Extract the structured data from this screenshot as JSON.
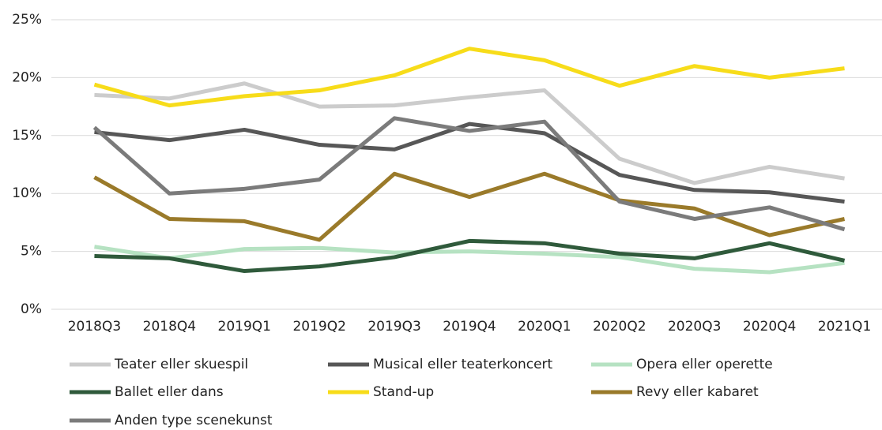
{
  "chart_data": {
    "type": "line",
    "categories": [
      "2018Q3",
      "2018Q4",
      "2019Q1",
      "2019Q2",
      "2019Q3",
      "2019Q4",
      "2020Q1",
      "2020Q2",
      "2020Q3",
      "2020Q4",
      "2021Q1"
    ],
    "series": [
      {
        "name": "Teater eller skuespil",
        "color": "#cccccc",
        "values": [
          18.5,
          18.2,
          19.5,
          17.5,
          17.6,
          18.3,
          18.9,
          13.0,
          10.9,
          12.3,
          11.3
        ]
      },
      {
        "name": "Musical eller teaterkoncert",
        "color": "#575757",
        "values": [
          15.3,
          14.6,
          15.5,
          14.2,
          13.8,
          16.0,
          15.2,
          11.6,
          10.3,
          10.1,
          9.3
        ]
      },
      {
        "name": "Opera eller operette",
        "color": "#b6e2c2",
        "values": [
          5.4,
          4.4,
          5.2,
          5.3,
          4.9,
          5.0,
          4.8,
          4.5,
          3.5,
          3.2,
          4.0
        ]
      },
      {
        "name": "Ballet eller dans",
        "color": "#2f5a3b",
        "values": [
          4.6,
          4.4,
          3.3,
          3.7,
          4.5,
          5.9,
          5.7,
          4.8,
          4.4,
          5.7,
          4.2
        ]
      },
      {
        "name": "Stand-up",
        "color": "#f7dc1a",
        "values": [
          19.4,
          17.6,
          18.4,
          18.9,
          20.2,
          22.5,
          21.5,
          19.3,
          21.0,
          20.0,
          20.8
        ]
      },
      {
        "name": "Revy eller kabaret",
        "color": "#9a7a2a",
        "values": [
          11.4,
          7.8,
          7.6,
          6.0,
          11.7,
          9.7,
          11.7,
          9.4,
          8.7,
          6.4,
          7.8
        ]
      },
      {
        "name": "Anden type scenekunst",
        "color": "#7b7b7b",
        "values": [
          15.7,
          10.0,
          10.4,
          11.2,
          16.5,
          15.4,
          16.2,
          9.3,
          7.8,
          8.8,
          6.9
        ]
      }
    ],
    "ylim": [
      0,
      25
    ],
    "yticks": [
      {
        "value": 0,
        "label": "0%"
      },
      {
        "value": 5,
        "label": "5%"
      },
      {
        "value": 10,
        "label": "10%"
      },
      {
        "value": 15,
        "label": "15%"
      },
      {
        "value": 20,
        "label": "20%"
      },
      {
        "value": 25,
        "label": "25%"
      }
    ],
    "grid": true,
    "legend": "bottom"
  }
}
